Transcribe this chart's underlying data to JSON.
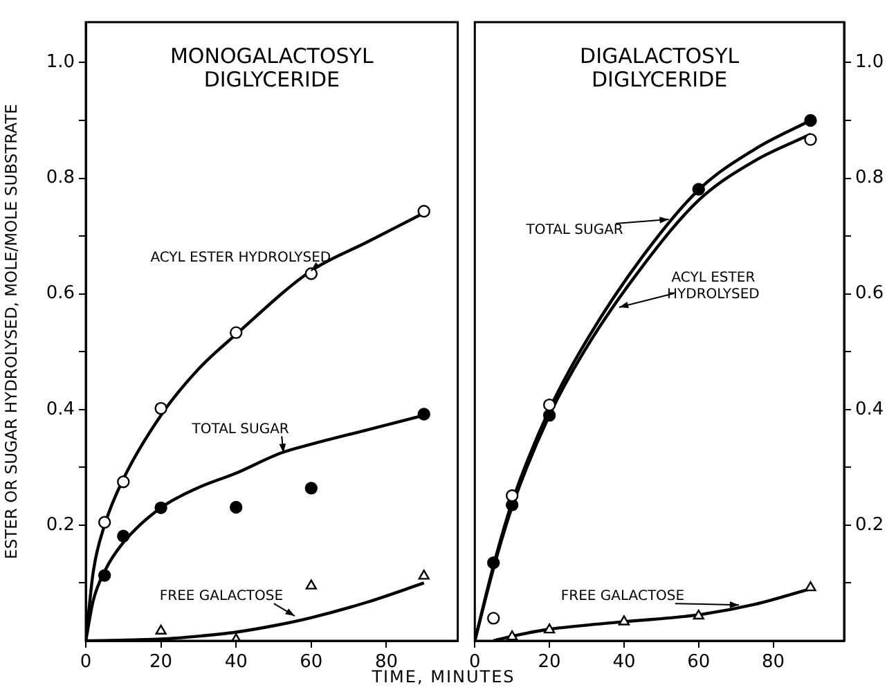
{
  "chart_data": [
    {
      "type": "scatter",
      "title": "MONOGALACTOSYL DIGLYCERIDE",
      "xlabel": "TIME, MINUTES",
      "ylabel": "ESTER OR SUGAR HYDROLYSED, MOLE/MOLE SUBSTRATE",
      "xlim": [
        0,
        99
      ],
      "xticks": [
        0,
        20,
        40,
        60,
        80
      ],
      "ylim": [
        0,
        1.07
      ],
      "yticks": [
        {
          "value": 0.1,
          "label": null
        },
        0.2,
        {
          "value": 0.3,
          "label": null
        },
        0.4,
        {
          "value": 0.5,
          "label": null
        },
        0.6,
        {
          "value": 0.7,
          "label": null
        },
        0.8,
        {
          "value": 0.9,
          "label": null
        },
        {
          "value": 1,
          "label": "1.0"
        }
      ],
      "grid": false,
      "legend": false,
      "series": [
        {
          "type": "scatter",
          "marker": "circle",
          "color": "#ffffff",
          "x": [
            5,
            10,
            20,
            40,
            60,
            90
          ],
          "values": [
            0.205,
            0.275,
            0.402,
            0.533,
            0.635,
            0.743
          ]
        },
        {
          "type": "scatter",
          "marker": "circle",
          "color": "#000000",
          "x": [
            5,
            10,
            20,
            40,
            60,
            90
          ],
          "values": [
            0.113,
            0.181,
            0.23,
            0.231,
            0.264,
            0.392
          ]
        },
        {
          "type": "scatter",
          "marker": "triangle",
          "color": "#ffffff",
          "x": [
            20,
            40,
            60,
            90
          ],
          "values": [
            0.017,
            0.002,
            0.095,
            0.112
          ]
        },
        {
          "type": "line",
          "marker": "none",
          "color": "#000000",
          "x": [
            0,
            2,
            5,
            10,
            20,
            30,
            40,
            60,
            75,
            90
          ],
          "values": [
            0,
            0.12,
            0.2,
            0.28,
            0.39,
            0.47,
            0.53,
            0.64,
            0.69,
            0.74
          ]
        },
        {
          "type": "line",
          "marker": "none",
          "color": "#000000",
          "x": [
            0,
            2,
            5,
            10,
            20,
            30,
            40,
            52,
            60,
            75,
            90
          ],
          "values": [
            0,
            0.07,
            0.12,
            0.17,
            0.23,
            0.265,
            0.29,
            0.325,
            0.34,
            0.365,
            0.39
          ]
        },
        {
          "type": "line",
          "marker": "none",
          "color": "#000000",
          "x": [
            0,
            20,
            30,
            40,
            50,
            60,
            75,
            90
          ],
          "values": [
            0,
            0.003,
            0.008,
            0.015,
            0.026,
            0.04,
            0.067,
            0.1
          ]
        }
      ],
      "annotations": [
        {
          "text": "ACYL ESTER HYDROLYSED",
          "x": 60,
          "y": 0.64
        },
        {
          "text": "TOTAL SUGAR",
          "x": 52.6,
          "y": 0.325
        },
        {
          "text": "FREE GALACTOSE",
          "x": 55.6,
          "y": 0.043
        }
      ]
    },
    {
      "type": "scatter",
      "title": "DIGALACTOSYL DIGLYCERIDE",
      "xlim": [
        0,
        99
      ],
      "xticks": [
        0,
        20,
        40,
        60,
        80
      ],
      "ylim": [
        0,
        1.07
      ],
      "yticks": [
        {
          "value": 0.1,
          "label": null
        },
        0.2,
        {
          "value": 0.3,
          "label": null
        },
        0.4,
        {
          "value": 0.5,
          "label": null
        },
        0.6,
        {
          "value": 0.7,
          "label": null
        },
        0.8,
        {
          "value": 0.9,
          "label": null
        },
        {
          "value": 1,
          "label": "1.0"
        }
      ],
      "grid": false,
      "legend": false,
      "series": [
        {
          "type": "scatter",
          "marker": "circle",
          "color": "#ffffff",
          "x": [
            5,
            10,
            20,
            90
          ],
          "values": [
            0.039,
            0.251,
            0.408,
            0.867
          ]
        },
        {
          "type": "scatter",
          "marker": "circle",
          "color": "#000000",
          "x": [
            5,
            10,
            20,
            60,
            90
          ],
          "values": [
            0.135,
            0.235,
            0.39,
            0.781,
            0.9
          ]
        },
        {
          "type": "scatter",
          "marker": "triangle",
          "color": "#ffffff",
          "x": [
            10,
            20,
            40,
            60,
            90
          ],
          "values": [
            0.007,
            0.019,
            0.033,
            0.043,
            0.092
          ]
        },
        {
          "type": "line",
          "marker": "none",
          "color": "#000000",
          "x": [
            0,
            5,
            10,
            20,
            30,
            45,
            60,
            75,
            90
          ],
          "values": [
            0,
            0.13,
            0.24,
            0.4,
            0.52,
            0.665,
            0.78,
            0.85,
            0.9
          ]
        },
        {
          "type": "line",
          "marker": "none",
          "color": "#000000",
          "x": [
            0,
            5,
            10,
            20,
            30,
            45,
            60,
            75,
            90
          ],
          "values": [
            0,
            0.125,
            0.232,
            0.39,
            0.508,
            0.648,
            0.762,
            0.83,
            0.876
          ]
        },
        {
          "type": "line",
          "marker": "none",
          "color": "#000000",
          "x": [
            5,
            10,
            20,
            40,
            60,
            75,
            90
          ],
          "values": [
            0,
            0.008,
            0.02,
            0.033,
            0.045,
            0.063,
            0.09
          ]
        }
      ],
      "annotations": [
        {
          "text": "TOTAL SUGAR",
          "x": 52,
          "y": 0.729
        },
        {
          "text": "ACYL ESTER HYDROLYSED",
          "x": 38.7,
          "y": 0.577
        },
        {
          "text": "FREE GALACTOSE",
          "x": 70.8,
          "y": 0.062
        }
      ]
    }
  ]
}
